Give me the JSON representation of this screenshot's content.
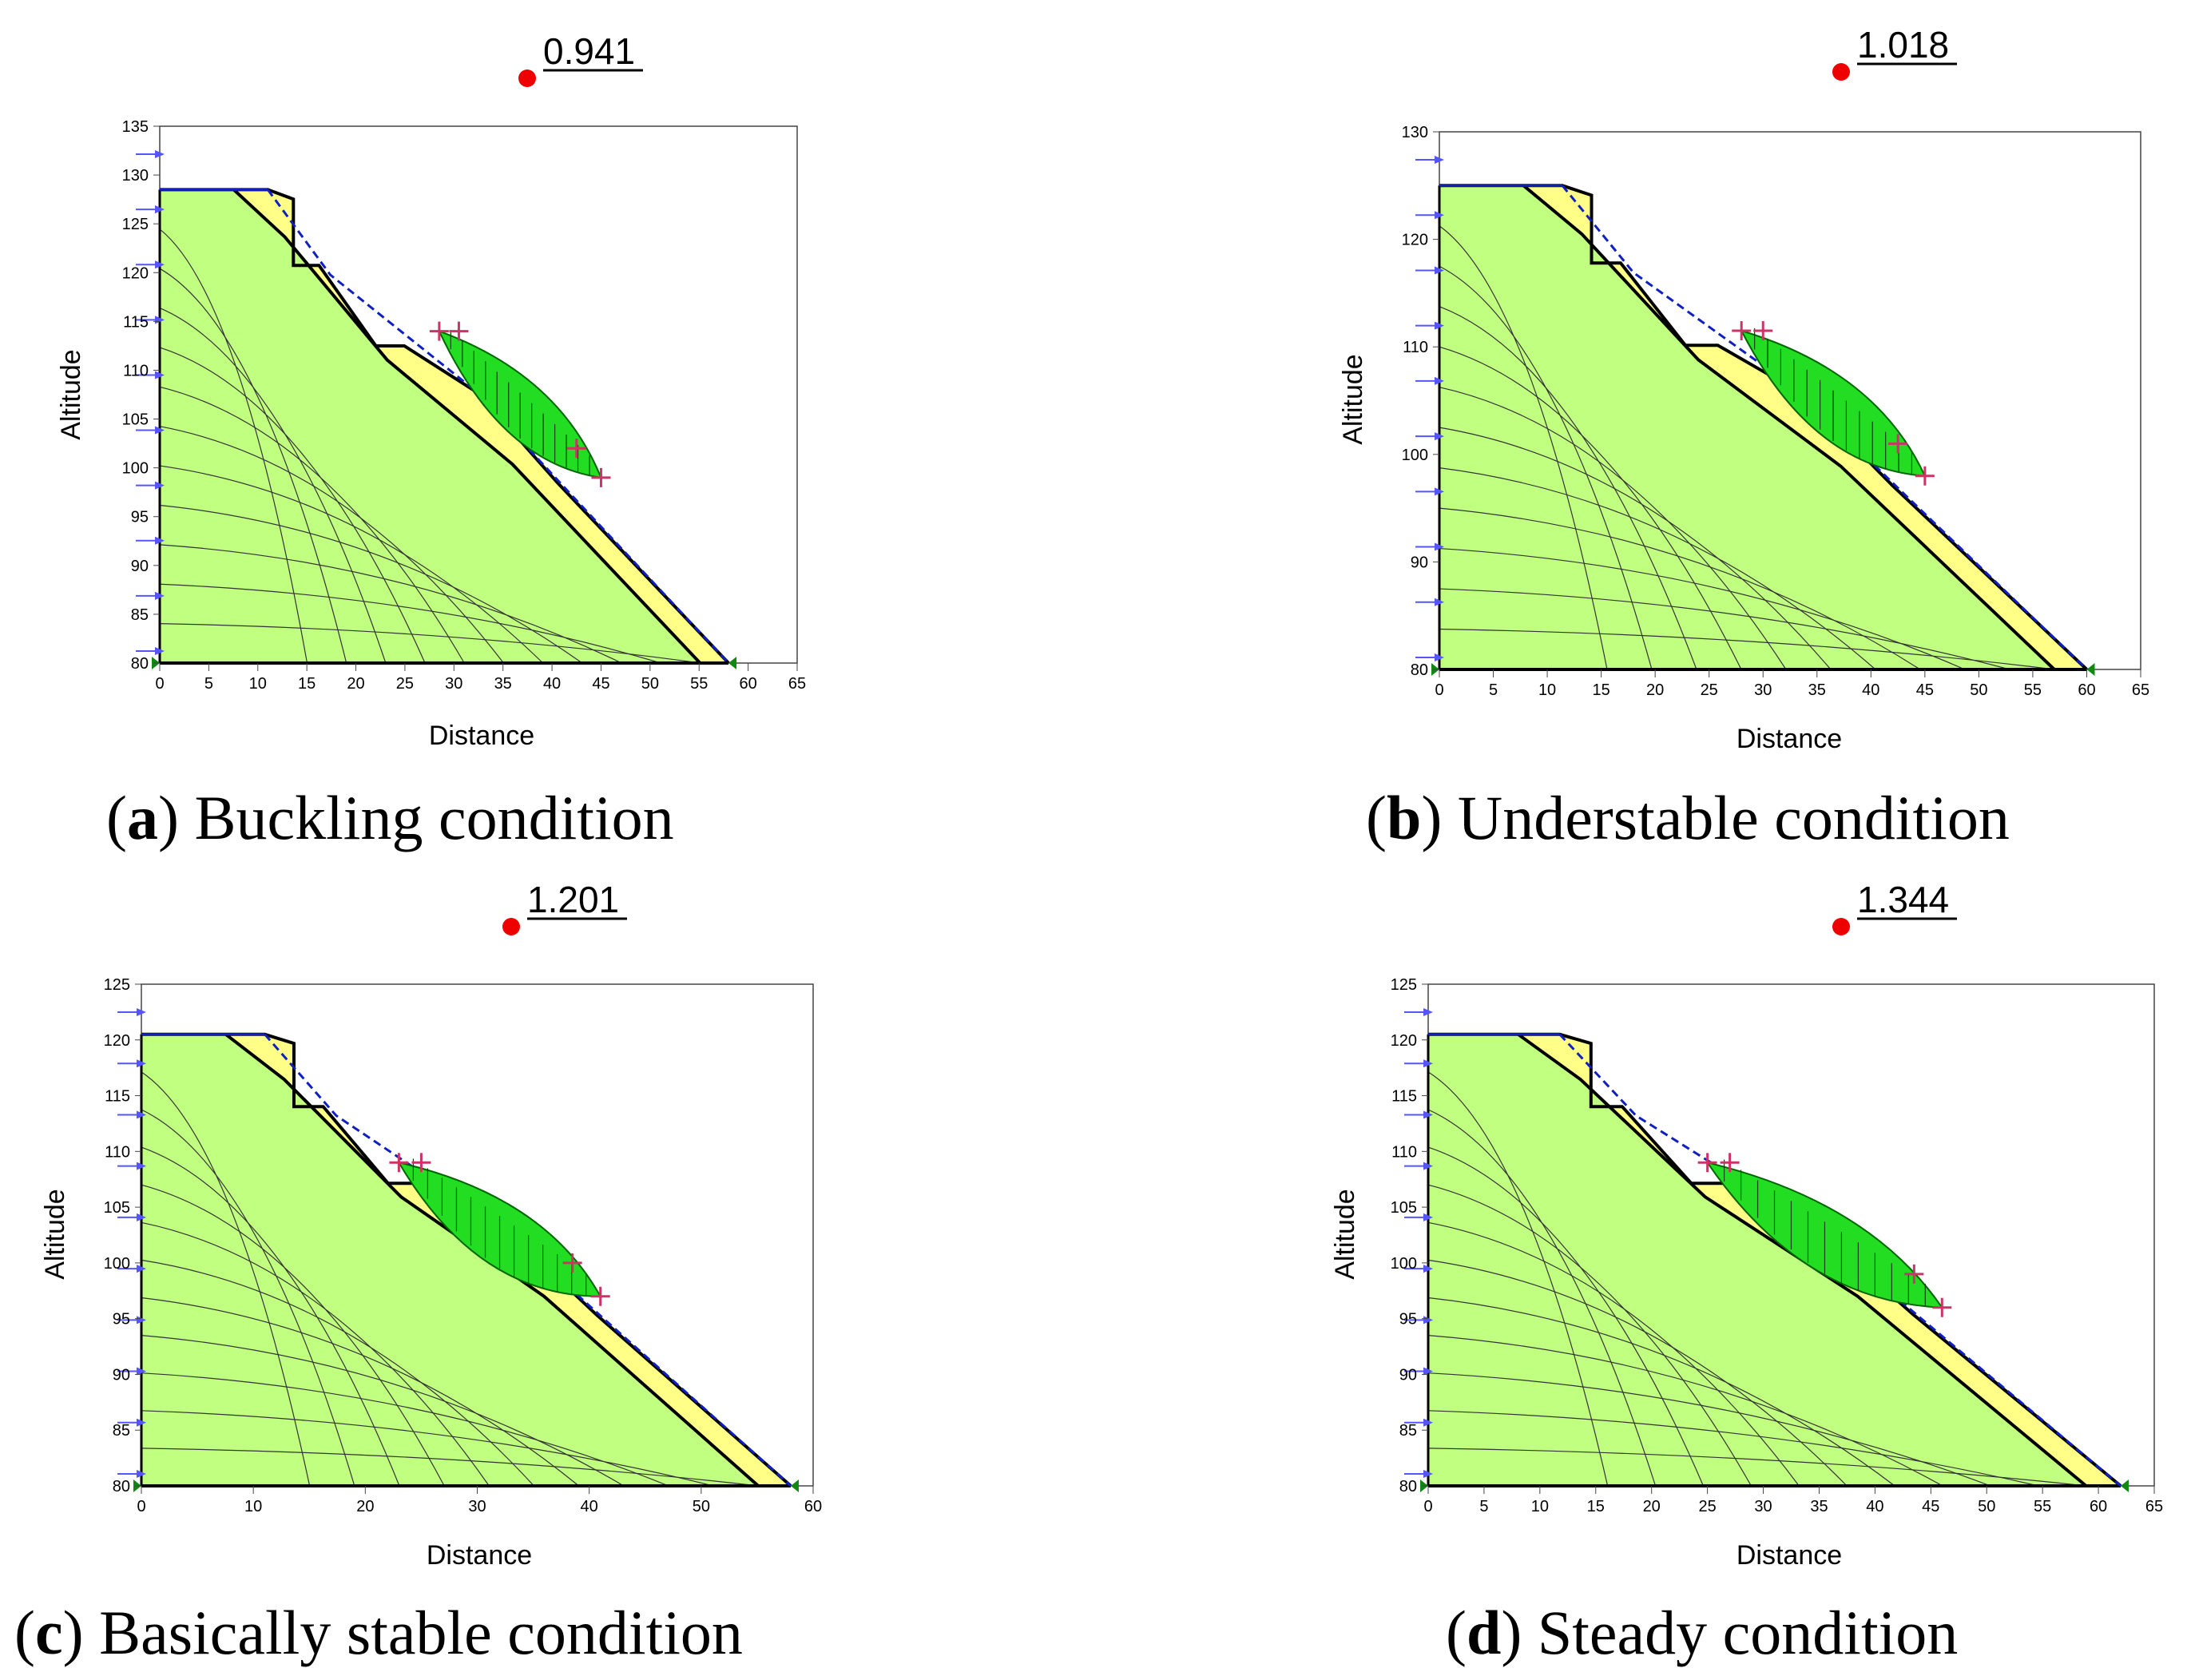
{
  "axis_labels": {
    "x": "Distance",
    "y": "Altitude"
  },
  "panels": [
    {
      "letter": "a",
      "caption": "Buckling condition",
      "factor_of_safety": "0.941",
      "x_ticks": [
        0,
        5,
        10,
        15,
        20,
        25,
        30,
        35,
        40,
        45,
        50,
        55,
        60,
        65
      ],
      "y_ticks": [
        80,
        85,
        90,
        95,
        100,
        105,
        110,
        115,
        120,
        125,
        130,
        135
      ],
      "x_range": [
        0,
        65
      ],
      "y_range": [
        80,
        135
      ],
      "crest_altitude": 128.5,
      "toe_distance": 58,
      "slip_surface": {
        "from": [
          28.5,
          114
        ],
        "to": [
          45,
          99
        ]
      }
    },
    {
      "letter": "b",
      "caption": "Understable condition",
      "factor_of_safety": "1.018",
      "x_ticks": [
        0,
        5,
        10,
        15,
        20,
        25,
        30,
        35,
        40,
        45,
        50,
        55,
        60,
        65
      ],
      "y_ticks": [
        80,
        90,
        100,
        110,
        120,
        130
      ],
      "x_range": [
        0,
        65
      ],
      "y_range": [
        80,
        130
      ],
      "crest_altitude": 125,
      "toe_distance": 60,
      "slip_surface": {
        "from": [
          28,
          111.5
        ],
        "to": [
          45,
          98
        ]
      }
    },
    {
      "letter": "c",
      "caption": "Basically stable condition",
      "factor_of_safety": "1.201",
      "x_ticks": [
        0,
        10,
        20,
        30,
        40,
        50,
        60
      ],
      "y_ticks": [
        80,
        85,
        90,
        95,
        100,
        105,
        110,
        115,
        120,
        125
      ],
      "x_range": [
        0,
        60
      ],
      "y_range": [
        80,
        125
      ],
      "crest_altitude": 120.5,
      "toe_distance": 58,
      "slip_surface": {
        "from": [
          23,
          109
        ],
        "to": [
          41,
          97
        ]
      }
    },
    {
      "letter": "d",
      "caption": "Steady condition",
      "factor_of_safety": "1.344",
      "x_ticks": [
        0,
        5,
        10,
        15,
        20,
        25,
        30,
        35,
        40,
        45,
        50,
        55,
        60,
        65
      ],
      "y_ticks": [
        80,
        85,
        90,
        95,
        100,
        105,
        110,
        115,
        120,
        125
      ],
      "x_range": [
        0,
        65
      ],
      "y_range": [
        80,
        125
      ],
      "crest_altitude": 120.5,
      "toe_distance": 62,
      "slip_surface": {
        "from": [
          25,
          109
        ],
        "to": [
          46,
          96
        ]
      }
    }
  ]
}
